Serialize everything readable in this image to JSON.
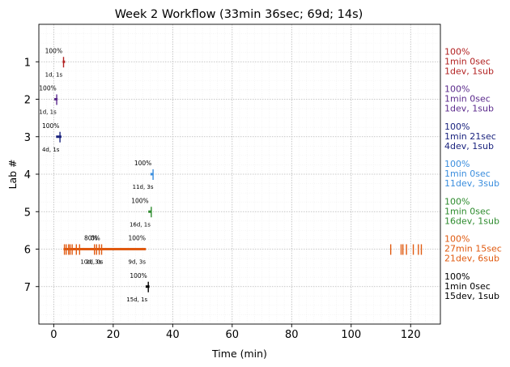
{
  "chart_data": {
    "type": "scatter",
    "title": "Week 2 Workflow (33min 36sec; 69d; 14s)",
    "xlabel": "Time (min)",
    "ylabel": "Lab #",
    "xlim": [
      -5,
      130
    ],
    "ylim": [
      0,
      8
    ],
    "x_ticks": [
      0,
      20,
      40,
      60,
      80,
      100,
      120
    ],
    "y_ticks": [
      1,
      2,
      3,
      4,
      5,
      6,
      7
    ],
    "grid": true,
    "labs": [
      {
        "lab": 1,
        "color": "#b22222",
        "segments": [
          [
            3,
            3.8
          ]
        ],
        "marks": [
          3.3
        ],
        "pct_labels": [
          {
            "x": 0,
            "text": "100%"
          }
        ],
        "detail_labels": [
          {
            "x": 0,
            "text": "1d, 1s"
          }
        ],
        "side": [
          "100%",
          "1min 0sec",
          "1dev, 1sub"
        ]
      },
      {
        "lab": 2,
        "color": "#5b2a8c",
        "segments": [
          [
            0.2,
            1.3
          ]
        ],
        "marks": [
          1.0
        ],
        "pct_labels": [
          {
            "x": -2,
            "text": "100%"
          }
        ],
        "detail_labels": [
          {
            "x": -2,
            "text": "1d, 1s"
          }
        ],
        "side": [
          "100%",
          "1min 0sec",
          "1dev, 1sub"
        ]
      },
      {
        "lab": 3,
        "color": "#1a237e",
        "segments": [
          [
            0.8,
            2.6
          ]
        ],
        "marks": [
          2.1
        ],
        "pct_labels": [
          {
            "x": -1,
            "text": "100%"
          }
        ],
        "detail_labels": [
          {
            "x": -1,
            "text": "4d, 1s"
          }
        ],
        "side": [
          "100%",
          "1min 21sec",
          "4dev, 1sub"
        ]
      },
      {
        "lab": 4,
        "color": "#3b8ede",
        "segments": [
          [
            32.5,
            33.5
          ]
        ],
        "marks": [
          33.4
        ],
        "pct_labels": [
          {
            "x": 30,
            "text": "100%"
          }
        ],
        "detail_labels": [
          {
            "x": 30,
            "text": "11d, 3s"
          }
        ],
        "side": [
          "100%",
          "1min 0sec",
          "11dev, 3sub"
        ]
      },
      {
        "lab": 5,
        "color": "#2e8b2e",
        "segments": [
          [
            31.8,
            32.8
          ]
        ],
        "marks": [
          32.8
        ],
        "pct_labels": [
          {
            "x": 29,
            "text": "100%"
          }
        ],
        "detail_labels": [
          {
            "x": 29,
            "text": "16d, 1s"
          }
        ],
        "side": [
          "100%",
          "1min 0sec",
          "16dev, 1sub"
        ]
      },
      {
        "lab": 6,
        "color": "#e05a10",
        "segments": [
          [
            3.3,
            31
          ]
        ],
        "marks": [
          3.6,
          4.2,
          5.0,
          5.5,
          6.2,
          7.6,
          8.7,
          13.7,
          14.4,
          15.3,
          16.1,
          113.3,
          116.8,
          117.4,
          118.6,
          120.9,
          122.6,
          123.6
        ],
        "pct_labels": [
          {
            "x": 12.5,
            "text": "80%"
          },
          {
            "x": 14,
            "text": "0%"
          },
          {
            "x": 28,
            "text": "100%"
          }
        ],
        "detail_labels": [
          {
            "x": 12.5,
            "text": "10d, 3s"
          },
          {
            "x": 13.7,
            "text": "2d, 0s"
          },
          {
            "x": 28,
            "text": "9d, 3s"
          }
        ],
        "side": [
          "100%",
          "27min 15sec",
          "21dev, 6sub"
        ]
      },
      {
        "lab": 7,
        "color": "#000000",
        "segments": [
          [
            30.9,
            32.2
          ]
        ],
        "marks": [
          31.8
        ],
        "pct_labels": [
          {
            "x": 28.5,
            "text": "100%"
          }
        ],
        "detail_labels": [
          {
            "x": 28,
            "text": "15d, 1s"
          }
        ],
        "side": [
          "100%",
          "1min 0sec",
          "15dev, 1sub"
        ]
      }
    ]
  }
}
